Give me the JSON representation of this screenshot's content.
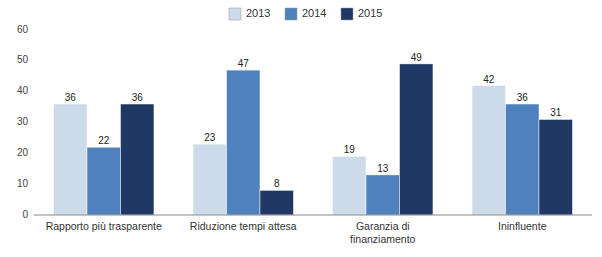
{
  "chart_data": {
    "type": "bar",
    "categories": [
      "Rapporto più trasparente",
      "Riduzione tempi attesa",
      "Garanzia di\nfinanziamento",
      "Ininfluente"
    ],
    "series": [
      {
        "name": "2013",
        "color": "#cddaea",
        "values": [
          36,
          23,
          19,
          42
        ]
      },
      {
        "name": "2014",
        "color": "#4f81bd",
        "values": [
          22,
          47,
          13,
          36
        ]
      },
      {
        "name": "2015",
        "color": "#1f3864",
        "values": [
          36,
          8,
          49,
          31
        ]
      }
    ],
    "ylim": [
      0,
      60
    ],
    "yticks": [
      0,
      10,
      20,
      30,
      40,
      50,
      60
    ],
    "grid": false,
    "legend": "top",
    "data_labels": true
  }
}
